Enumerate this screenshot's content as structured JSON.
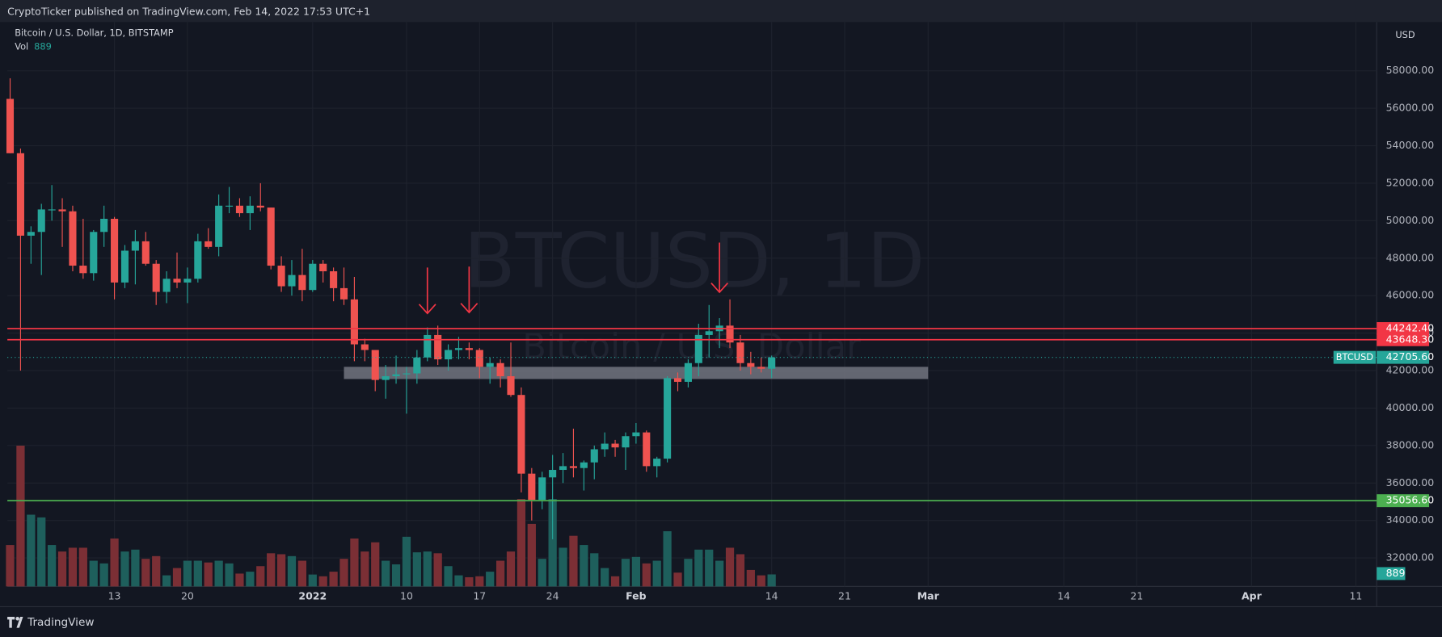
{
  "header": {
    "text": "CryptoTicker published on TradingView.com, Feb 14, 2022 17:53 UTC+1"
  },
  "footer": {
    "brand": "TradingView"
  },
  "chart_data": {
    "type": "candlestick",
    "title": "Bitcoin / U.S. Dollar, 1D, BITSTAMP",
    "watermark": "BTCUSD, 1D",
    "watermark_sub": "Bitcoin / U.S. Dollar",
    "currency": "USD",
    "symbol": "BTCUSD",
    "volume_label": "Vol",
    "up_color": "#26a69a",
    "down_color": "#ef5350",
    "volume_up_color": "#1e5f5c",
    "volume_down_color": "#7b2f35",
    "grid": true,
    "x": [
      "2021-12-03",
      "2021-12-04",
      "2021-12-05",
      "2021-12-06",
      "2021-12-07",
      "2021-12-08",
      "2021-12-09",
      "2021-12-10",
      "2021-12-11",
      "2021-12-12",
      "2021-12-13",
      "2021-12-14",
      "2021-12-15",
      "2021-12-16",
      "2021-12-17",
      "2021-12-18",
      "2021-12-19",
      "2021-12-20",
      "2021-12-21",
      "2021-12-22",
      "2021-12-23",
      "2021-12-24",
      "2021-12-25",
      "2021-12-26",
      "2021-12-27",
      "2021-12-28",
      "2021-12-29",
      "2021-12-30",
      "2021-12-31",
      "2022-01-01",
      "2022-01-02",
      "2022-01-03",
      "2022-01-04",
      "2022-01-05",
      "2022-01-06",
      "2022-01-07",
      "2022-01-08",
      "2022-01-09",
      "2022-01-10",
      "2022-01-11",
      "2022-01-12",
      "2022-01-13",
      "2022-01-14",
      "2022-01-15",
      "2022-01-16",
      "2022-01-17",
      "2022-01-18",
      "2022-01-19",
      "2022-01-20",
      "2022-01-21",
      "2022-01-22",
      "2022-01-23",
      "2022-01-24",
      "2022-01-25",
      "2022-01-26",
      "2022-01-27",
      "2022-01-28",
      "2022-01-29",
      "2022-01-30",
      "2022-01-31",
      "2022-02-01",
      "2022-02-02",
      "2022-02-03",
      "2022-02-04",
      "2022-02-05",
      "2022-02-06",
      "2022-02-07",
      "2022-02-08",
      "2022-02-09",
      "2022-02-10",
      "2022-02-11",
      "2022-02-12",
      "2022-02-13",
      "2022-02-14"
    ],
    "open": [
      56500,
      53600,
      49200,
      49400,
      50600,
      50600,
      50500,
      47600,
      47200,
      49400,
      50100,
      46700,
      48400,
      48900,
      47700,
      46200,
      46900,
      46700,
      46900,
      48900,
      48600,
      50800,
      50800,
      50400,
      50800,
      50700,
      47600,
      46500,
      47100,
      46300,
      47700,
      47300,
      46400,
      45800,
      43400,
      43100,
      41500,
      41700,
      41800,
      41850,
      42700,
      43900,
      42600,
      43100,
      43200,
      43100,
      42200,
      42400,
      41700,
      40700,
      36500,
      35100,
      36300,
      36700,
      36900,
      36800,
      37100,
      37800,
      38100,
      37900,
      38500,
      38700,
      36900,
      37300,
      41600,
      41400,
      42400,
      43900,
      44100,
      44400,
      43500,
      42400,
      42200,
      42100
    ],
    "high": [
      57600,
      53850,
      49700,
      50900,
      51900,
      51200,
      50800,
      50100,
      49500,
      50800,
      50200,
      48700,
      49500,
      49400,
      47900,
      47300,
      48300,
      47500,
      49300,
      49600,
      51400,
      51800,
      51200,
      51300,
      52000,
      50700,
      48100,
      47900,
      48500,
      47900,
      47900,
      47500,
      47500,
      47000,
      43700,
      43100,
      42300,
      42800,
      42200,
      43100,
      44300,
      44400,
      43400,
      43800,
      43500,
      43200,
      42700,
      42600,
      43500,
      41100,
      36800,
      36600,
      37500,
      37600,
      38900,
      37200,
      38000,
      38700,
      38300,
      38700,
      39200,
      38800,
      37400,
      41700,
      41900,
      42600,
      44500,
      45500,
      44800,
      45800,
      43900,
      43000,
      42700,
      42800
    ],
    "low": [
      53600,
      42000,
      47700,
      47100,
      50000,
      48600,
      47300,
      46900,
      46800,
      48600,
      45800,
      46400,
      46600,
      47600,
      45500,
      45600,
      46400,
      45600,
      46700,
      48500,
      48100,
      50400,
      50200,
      49500,
      50500,
      47400,
      46200,
      46000,
      45700,
      46200,
      46700,
      45700,
      45500,
      42500,
      42500,
      40900,
      40500,
      41300,
      39700,
      41300,
      42500,
      42300,
      42000,
      42600,
      42600,
      41600,
      41300,
      41100,
      40600,
      35500,
      34000,
      34600,
      33000,
      36000,
      36300,
      35600,
      36200,
      37400,
      37400,
      36700,
      38100,
      36600,
      36300,
      37100,
      40900,
      41100,
      41700,
      42700,
      43200,
      43200,
      42000,
      41800,
      41900,
      41600
    ],
    "close": [
      53600,
      49200,
      49400,
      50600,
      50600,
      50500,
      47600,
      47200,
      49400,
      50100,
      46700,
      48400,
      48900,
      47700,
      46200,
      46900,
      46700,
      46900,
      48900,
      48600,
      50800,
      50800,
      50400,
      50800,
      50700,
      47600,
      46500,
      47100,
      46300,
      47700,
      47300,
      46400,
      45800,
      43400,
      43100,
      41500,
      41700,
      41800,
      41850,
      42700,
      43900,
      42600,
      43100,
      43200,
      43100,
      42200,
      42400,
      41700,
      40700,
      36500,
      35100,
      36300,
      36700,
      36900,
      36800,
      37100,
      37800,
      38100,
      37900,
      38500,
      38700,
      36900,
      37300,
      41600,
      41400,
      42400,
      43900,
      44100,
      44400,
      43500,
      42400,
      42200,
      42100,
      42705.6
    ],
    "last_price_label": "42705.60",
    "volume": [
      3060,
      10400,
      5300,
      5100,
      3060,
      2580,
      2860,
      2860,
      1900,
      1700,
      3540,
      2580,
      2720,
      2040,
      2240,
      820,
      1360,
      1900,
      1900,
      1770,
      1900,
      1700,
      950,
      1090,
      1500,
      2450,
      2380,
      2240,
      1900,
      880,
      750,
      1090,
      2040,
      3540,
      2580,
      3260,
      1900,
      1630,
      3670,
      2520,
      2580,
      2450,
      1500,
      820,
      680,
      750,
      1090,
      1900,
      2580,
      6460,
      4620,
      2040,
      6460,
      2860,
      3740,
      3060,
      2450,
      1360,
      750,
      2040,
      2180,
      1700,
      1900,
      4080,
      1020,
      2040,
      2720,
      2720,
      1900,
      2860,
      2380,
      1220,
      820,
      889
    ],
    "volume_ylim": [
      0,
      11000
    ],
    "ylim": [
      30480,
      60600
    ],
    "yticks": [
      {
        "value": 32000,
        "label": "32000.00"
      },
      {
        "value": 34000,
        "label": "34000.00"
      },
      {
        "value": 36000,
        "label": "36000.00"
      },
      {
        "value": 38000,
        "label": "38000.00"
      },
      {
        "value": 40000,
        "label": "40000.00"
      },
      {
        "value": 42000,
        "label": "42000.00"
      },
      {
        "value": 44000,
        "label": "44000.00"
      },
      {
        "value": 46000,
        "label": "46000.00"
      },
      {
        "value": 48000,
        "label": "48000.00"
      },
      {
        "value": 50000,
        "label": "50000.00"
      },
      {
        "value": 52000,
        "label": "52000.00"
      },
      {
        "value": 54000,
        "label": "54000.00"
      },
      {
        "value": 56000,
        "label": "56000.00"
      },
      {
        "value": 58000,
        "label": "58000.00"
      }
    ],
    "xlim": [
      "2021-12-03",
      "2022-04-13"
    ],
    "xticks": [
      {
        "value": "2021-12-13",
        "label": "13"
      },
      {
        "value": "2021-12-20",
        "label": "20"
      },
      {
        "value": "2022-01-01",
        "label": "2022"
      },
      {
        "value": "2022-01-10",
        "label": "10"
      },
      {
        "value": "2022-01-17",
        "label": "17"
      },
      {
        "value": "2022-01-24",
        "label": "24"
      },
      {
        "value": "2022-02-01",
        "label": "Feb"
      },
      {
        "value": "2022-02-14",
        "label": "14"
      },
      {
        "value": "2022-02-21",
        "label": "21"
      },
      {
        "value": "2022-03-01",
        "label": "Mar"
      },
      {
        "value": "2022-03-14",
        "label": "14"
      },
      {
        "value": "2022-03-21",
        "label": "21"
      },
      {
        "value": "2022-04-01",
        "label": "Apr"
      },
      {
        "value": "2022-04-11",
        "label": "11"
      }
    ],
    "levels": [
      {
        "value": 44242.4,
        "label": "44242.40",
        "color": "#f23645"
      },
      {
        "value": 43648.3,
        "label": "43648.30",
        "color": "#f23645"
      },
      {
        "value": 35056.6,
        "label": "35056.60",
        "color": "#4caf50"
      }
    ],
    "zone": {
      "from": "2022-01-04",
      "to": "2022-03-01",
      "low": 41550,
      "high": 42200,
      "color": "#787b86"
    },
    "arrows": [
      {
        "x": "2022-01-12",
        "top": 47500,
        "bottom": 45050
      },
      {
        "x": "2022-01-16",
        "top": 47550,
        "bottom": 45100
      },
      {
        "x": "2022-02-09",
        "top": 48830,
        "bottom": 46180
      }
    ]
  }
}
